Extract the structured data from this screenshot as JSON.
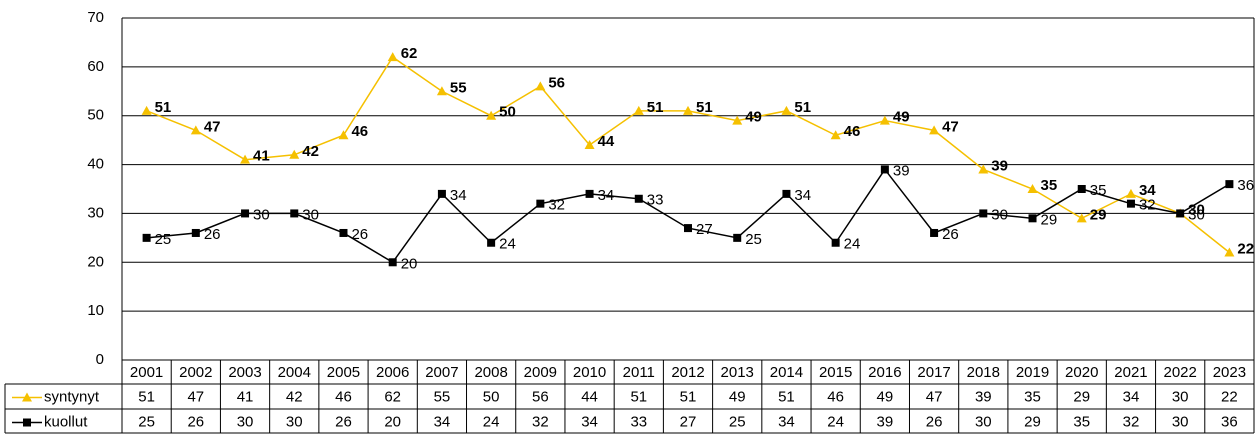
{
  "chart_data": {
    "type": "line",
    "categories": [
      "2001",
      "2002",
      "2003",
      "2004",
      "2005",
      "2006",
      "2007",
      "2008",
      "2009",
      "2010",
      "2011",
      "2012",
      "2013",
      "2014",
      "2015",
      "2016",
      "2017",
      "2018",
      "2019",
      "2020",
      "2021",
      "2022",
      "2023"
    ],
    "series": [
      {
        "name": "syntynyt",
        "color": "#f5c000",
        "marker": "triangle",
        "values": [
          51,
          47,
          41,
          42,
          46,
          62,
          55,
          50,
          56,
          44,
          51,
          51,
          49,
          51,
          46,
          49,
          47,
          39,
          35,
          29,
          34,
          30,
          22
        ]
      },
      {
        "name": "kuollut",
        "color": "#000000",
        "marker": "square",
        "values": [
          25,
          26,
          30,
          30,
          26,
          20,
          34,
          24,
          32,
          34,
          33,
          27,
          25,
          34,
          24,
          39,
          26,
          30,
          29,
          35,
          32,
          30,
          36
        ]
      }
    ],
    "ylim": [
      0,
      70
    ],
    "yticks": [
      0,
      10,
      20,
      30,
      40,
      50,
      60,
      70
    ],
    "grid": true
  }
}
